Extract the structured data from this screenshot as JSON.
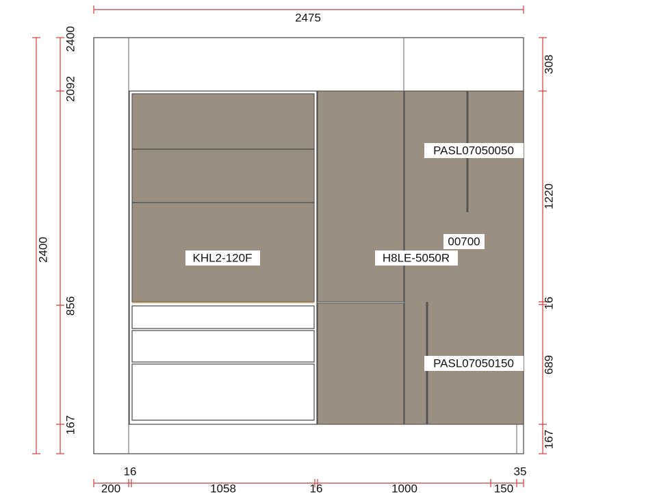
{
  "dimensions": {
    "top": {
      "overall": 2475
    },
    "left": {
      "overall": 2400,
      "heights": [
        2400,
        2092,
        856,
        167
      ]
    },
    "right": [
      308,
      1220,
      16,
      689,
      167
    ],
    "bottom": {
      "upper": [
        16,
        35
      ],
      "lower": [
        200,
        1058,
        16,
        1000,
        150
      ]
    }
  },
  "labels": {
    "left_unit": "KHL2-120F",
    "middle_unit": "H8LE-5050R",
    "right_code": "00700",
    "right_upper_door": "PASL07050050",
    "right_lower_door": "PASL07050150"
  }
}
